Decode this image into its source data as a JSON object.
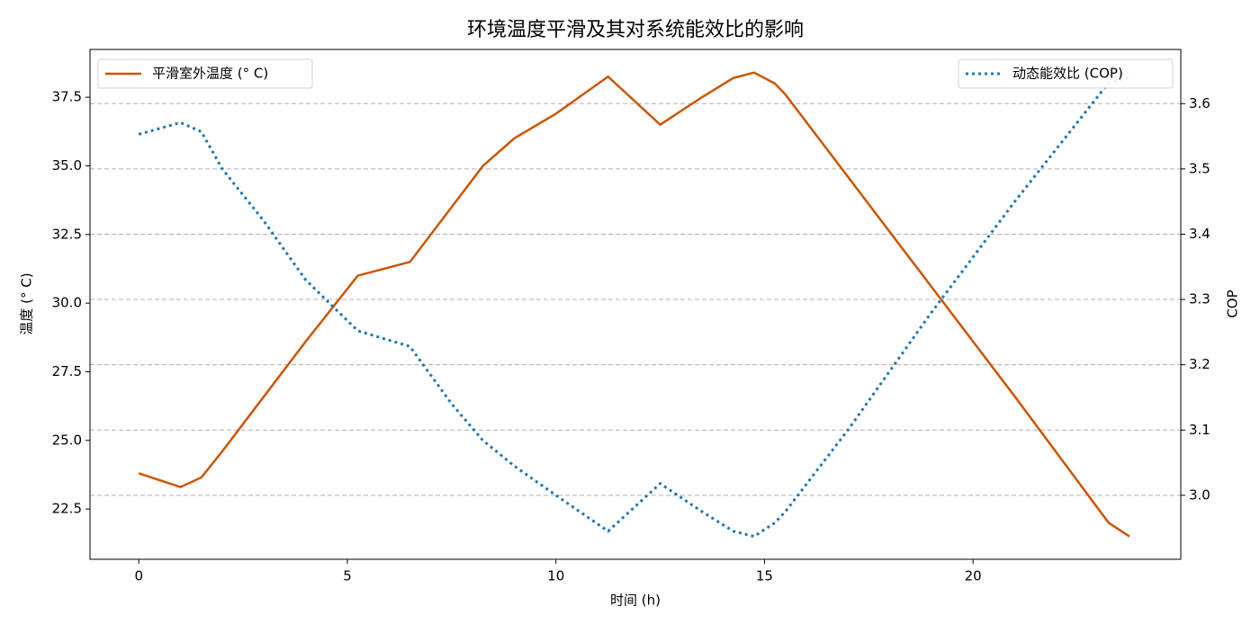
{
  "chart_data": {
    "type": "line",
    "title": "环境温度平滑及其对系统能效比的影响",
    "xlabel": "时间 (h)",
    "ylabel": "温度 (° C)",
    "y2label": "COP",
    "x": [
      0,
      0.5,
      1,
      1.5,
      2,
      3,
      4,
      5.25,
      6.5,
      7.5,
      8.25,
      9,
      10,
      11.25,
      12.5,
      13.5,
      14.25,
      14.75,
      15.25,
      15.5,
      17,
      19,
      21,
      23.25,
      23.75
    ],
    "series": [
      {
        "name": "平滑室外温度 (° C)",
        "color": "#cc5500",
        "style": "solid",
        "axis": "y",
        "values": [
          23.8,
          23.55,
          23.3,
          23.65,
          24.6,
          26.6,
          28.6,
          31.0,
          31.5,
          33.5,
          35.0,
          36.0,
          36.9,
          38.25,
          36.5,
          37.5,
          38.2,
          38.4,
          38.0,
          37.6,
          34.6,
          30.6,
          26.6,
          22.0,
          21.5
        ]
      },
      {
        "name": "动态能效比 (COP)",
        "color": "#1f77b4",
        "style": "dotted",
        "axis": "y2",
        "values": [
          3.553,
          3.562,
          3.571,
          3.557,
          3.5,
          3.42,
          3.33,
          3.252,
          3.228,
          3.14,
          3.084,
          3.045,
          3.0,
          2.945,
          3.018,
          2.975,
          2.945,
          2.937,
          2.958,
          2.975,
          3.1,
          3.28,
          3.45,
          3.632,
          3.64
        ]
      }
    ],
    "xlim": [
      -1.17,
      24.98
    ],
    "xticks": [
      0,
      5,
      10,
      15,
      20
    ],
    "ylim": [
      20.67,
      39.24
    ],
    "yticks": [
      22.5,
      {
        "value": 25,
        "label": "25.0"
      },
      27.5,
      {
        "value": 30,
        "label": "30.0"
      },
      32.5,
      {
        "value": 35,
        "label": "35.0"
      },
      37.5
    ],
    "y2lim": [
      2.902,
      3.683
    ],
    "y2ticks": [
      {
        "value": 3,
        "label": "3.0"
      },
      3.1,
      3.2,
      3.3,
      3.4,
      3.5,
      3.6
    ],
    "grid": "y2",
    "legend": [
      "upper left",
      "upper right"
    ]
  }
}
